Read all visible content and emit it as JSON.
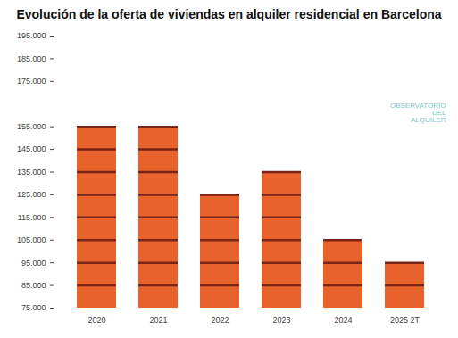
{
  "chart_data": {
    "type": "bar",
    "title": "Evolución de la oferta de viviendas en alquiler residencial en Barcelona",
    "annotation": "OBSERVATORIO DEL ALQUILER",
    "categories": [
      "2020",
      "2021",
      "2022",
      "2023",
      "2024",
      "2025 2T"
    ],
    "values": [
      155000,
      155000,
      125000,
      135000,
      105000,
      95000
    ],
    "color": "#e8622c",
    "ylim": [
      75000,
      195000
    ],
    "yticks": [
      {
        "value": 75000,
        "label": "75.000"
      },
      {
        "value": 85000,
        "label": "85.000"
      },
      {
        "value": 95000,
        "label": "95.000"
      },
      {
        "value": 105000,
        "label": "105.000"
      },
      {
        "value": 115000,
        "label": "115.000"
      },
      {
        "value": 125000,
        "label": "125.000"
      },
      {
        "value": 135000,
        "label": "135.000"
      },
      {
        "value": 145000,
        "label": "145.000"
      },
      {
        "value": 155000,
        "label": "155.000"
      },
      {
        "value": 175000,
        "label": "175.000"
      },
      {
        "value": 185000,
        "label": "185.000"
      },
      {
        "value": 195000,
        "label": "195.000"
      }
    ],
    "grid": false
  }
}
